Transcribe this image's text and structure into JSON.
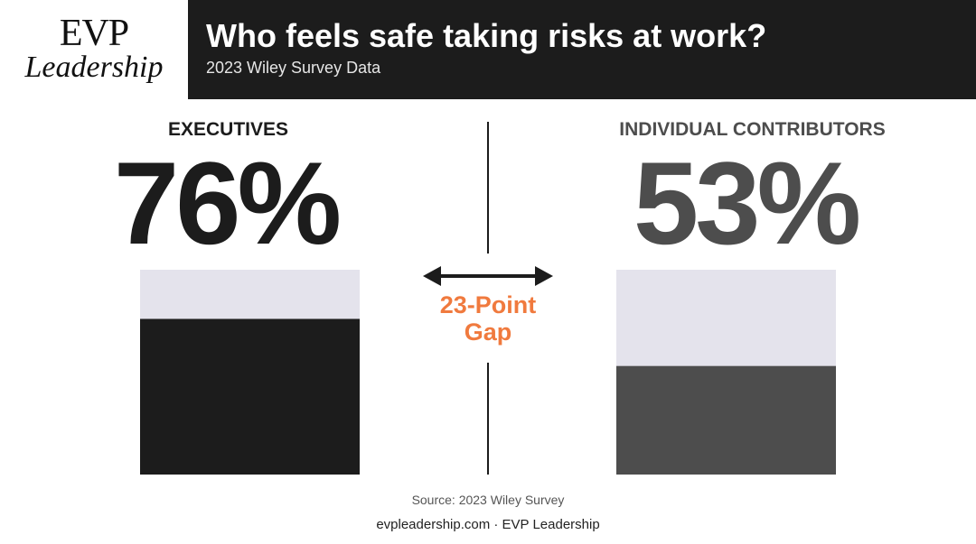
{
  "header": {
    "logo_line1": "EVP",
    "logo_line2": "Leadership",
    "title": "Who feels safe taking risks at work?",
    "subtitle": "2023 Wiley Survey Data"
  },
  "colors": {
    "header_bg": "#1c1c1c",
    "executives": "#1c1c1c",
    "individual_contributors": "#4d4d4d",
    "bar_background": "#e4e3ec",
    "accent": "#f07a3e"
  },
  "chart_data": {
    "type": "bar",
    "title": "Who feels safe taking risks at work?",
    "subtitle": "2023 Wiley Survey Data",
    "categories": [
      "EXECUTIVES",
      "INDIVIDUAL CONTRIBUTORS"
    ],
    "values": [
      76,
      53
    ],
    "value_labels": [
      "76%",
      "53%"
    ],
    "ylim": [
      0,
      100
    ],
    "unit": "%",
    "annotation": {
      "line1": "23-Point",
      "line2": "Gap"
    },
    "source": "Source: 2023 Wiley Survey"
  },
  "footer": {
    "credit": "evpleadership.com · EVP Leadership"
  }
}
